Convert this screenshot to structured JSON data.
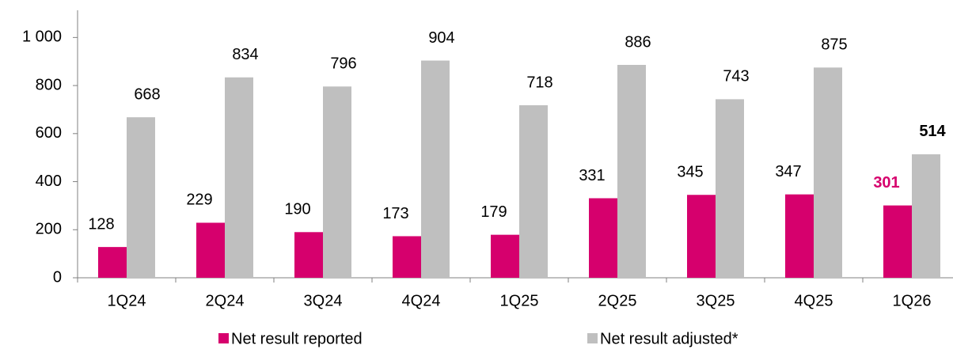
{
  "chart_data": {
    "type": "bar",
    "categories": [
      "1Q24",
      "2Q24",
      "3Q24",
      "4Q24",
      "1Q25",
      "2Q25",
      "3Q25",
      "4Q25",
      "1Q26"
    ],
    "series": [
      {
        "name": "Net result reported",
        "color": "#d6006d",
        "values": [
          128,
          229,
          190,
          173,
          179,
          331,
          345,
          347,
          301
        ]
      },
      {
        "name": "Net result adjusted*",
        "color": "#bfbfbf",
        "values": [
          668,
          834,
          796,
          904,
          718,
          886,
          743,
          875,
          514
        ]
      }
    ],
    "ylim": [
      0,
      1100
    ],
    "yticks": [
      0,
      200,
      400,
      600,
      800,
      {
        "value": 1000,
        "label": "1 000"
      }
    ],
    "legend": "bottom"
  }
}
